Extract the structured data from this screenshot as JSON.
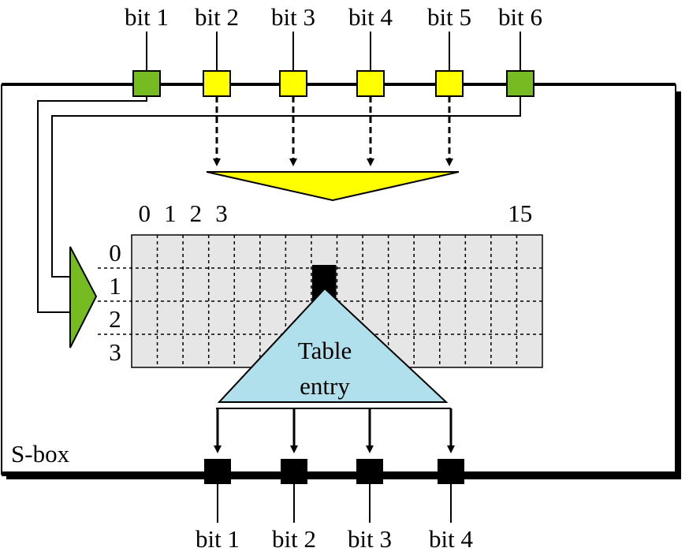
{
  "box_label": "S-box",
  "input_bits": [
    {
      "label": "bit 1",
      "kind": "outer"
    },
    {
      "label": "bit 2",
      "kind": "middle"
    },
    {
      "label": "bit 3",
      "kind": "middle"
    },
    {
      "label": "bit 4",
      "kind": "middle"
    },
    {
      "label": "bit 5",
      "kind": "middle"
    },
    {
      "label": "bit 6",
      "kind": "outer"
    }
  ],
  "output_bits": [
    "bit 1",
    "bit 2",
    "bit 3",
    "bit 4"
  ],
  "table": {
    "column_labels": [
      "0",
      "1",
      "2",
      "3",
      "15"
    ],
    "row_labels": [
      "0",
      "1",
      "2",
      "3"
    ],
    "selected": {
      "row": 1,
      "column": 7
    },
    "entry_label_line1": "Table",
    "entry_label_line2": "entry"
  },
  "colors": {
    "outer_bit": "#77bb22",
    "middle_bit": "#ffff00",
    "column_selector": "#ffff00",
    "row_selector": "#77bb22",
    "table_bg": "#e6e6e6",
    "table_entry": "#b0e0ec",
    "output_bit": "#000000"
  }
}
